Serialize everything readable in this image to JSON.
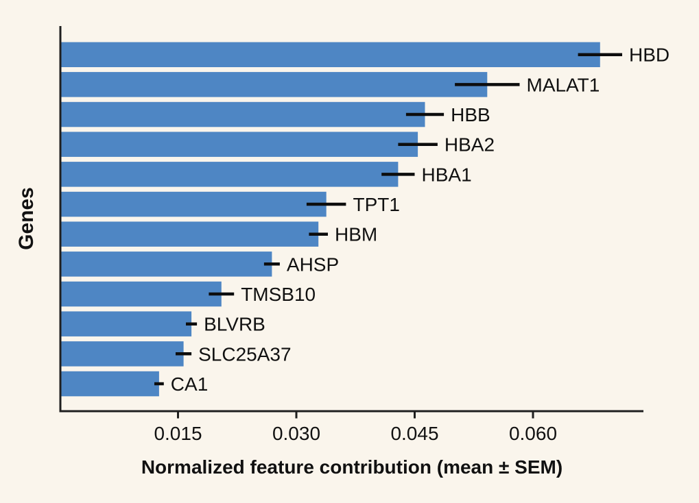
{
  "chart_data": {
    "type": "bar",
    "orientation": "horizontal",
    "title": "",
    "xlabel": "Normalized feature contribution (mean ± SEM)",
    "ylabel": "Genes",
    "categories": [
      "HBD",
      "MALAT1",
      "HBB",
      "HBA2",
      "HBA1",
      "TPT1",
      "HBM",
      "AHSP",
      "TMSB10",
      "BLVRB",
      "SLC25A37",
      "CA1"
    ],
    "series": [
      {
        "name": "mean",
        "values": [
          0.0685,
          0.0542,
          0.0463,
          0.0454,
          0.0429,
          0.0338,
          0.0328,
          0.0269,
          0.0205,
          0.0167,
          0.0157,
          0.0126
        ]
      },
      {
        "name": "sem",
        "values": [
          0.0028,
          0.0041,
          0.0024,
          0.0025,
          0.0021,
          0.0025,
          0.0012,
          0.001,
          0.0016,
          0.0007,
          0.001,
          0.0006
        ]
      }
    ],
    "xlim": [
      0,
      0.074
    ],
    "xticks": [
      0.015,
      0.03,
      0.045,
      0.06
    ],
    "xtick_labels": [
      "0.015",
      "0.030",
      "0.045",
      "0.060"
    ],
    "grid": false,
    "legend": "none",
    "error_bar_style": "horizontal line, no caps",
    "colors": {
      "bar": "#4e86c4",
      "background": "#faf5ec",
      "spine": "#1f1f1f",
      "text": "#111111",
      "error_bar": "#0d0d0d"
    }
  }
}
